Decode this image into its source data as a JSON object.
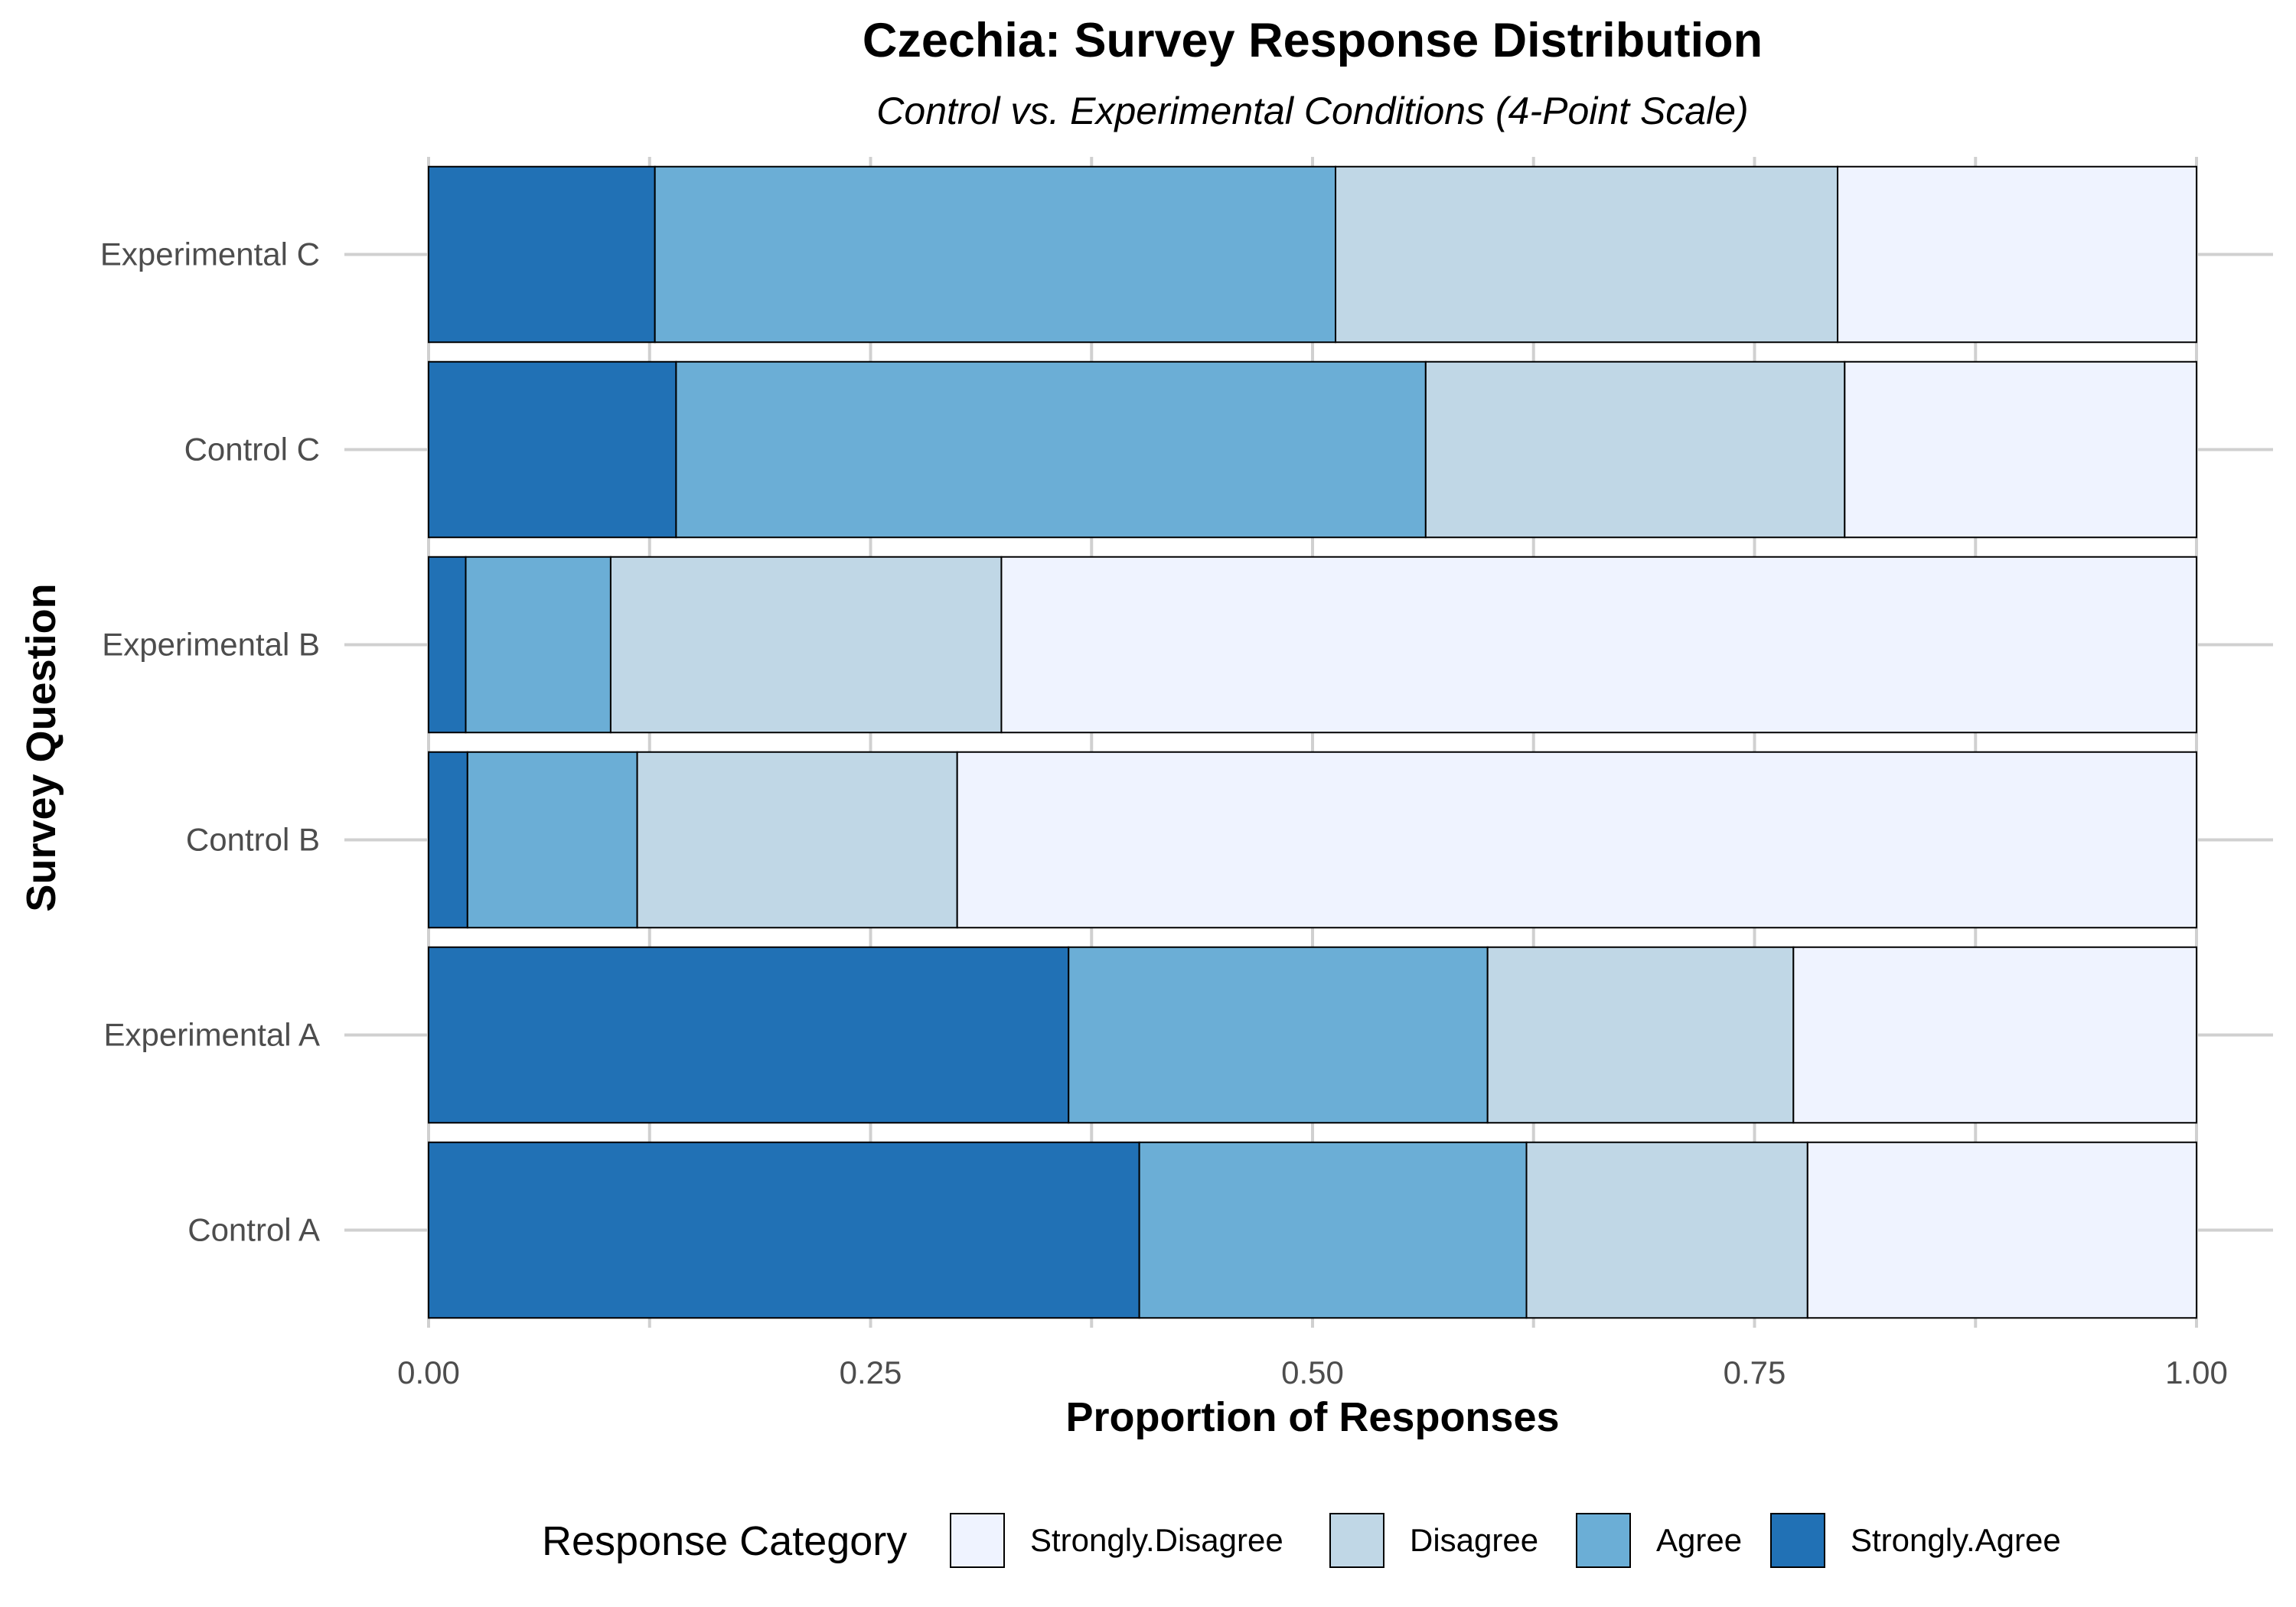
{
  "chart_data": {
    "type": "bar",
    "orientation": "horizontal",
    "stacked": true,
    "title": "Czechia: Survey Response Distribution",
    "subtitle": "Control vs. Experimental Conditions (4-Point Scale)",
    "xlabel": "Proportion of Responses",
    "ylabel": "Survey Question",
    "xlim": [
      0,
      1
    ],
    "x_ticks": [
      "0.00",
      "0.25",
      "0.50",
      "0.75",
      "1.00"
    ],
    "x_tick_values": [
      0,
      0.25,
      0.5,
      0.75,
      1.0
    ],
    "categories": [
      "Control A",
      "Experimental A",
      "Control B",
      "Experimental B",
      "Control C",
      "Experimental C"
    ],
    "series": [
      {
        "name": "Strongly.Agree",
        "color": "#2171b5",
        "values": [
          0.402,
          0.362,
          0.022,
          0.021,
          0.14,
          0.128
        ]
      },
      {
        "name": "Agree",
        "color": "#6baed6",
        "values": [
          0.219,
          0.237,
          0.096,
          0.082,
          0.424,
          0.385
        ]
      },
      {
        "name": "Disagree",
        "color": "#c0d7e6",
        "values": [
          0.159,
          0.173,
          0.181,
          0.221,
          0.237,
          0.284
        ]
      },
      {
        "name": "Strongly.Disagree",
        "color": "#eff3ff",
        "values": [
          0.22,
          0.228,
          0.701,
          0.676,
          0.199,
          0.203
        ]
      }
    ],
    "legend": {
      "title": "Response Category",
      "position": "bottom",
      "order": [
        "Strongly.Disagree",
        "Disagree",
        "Agree",
        "Strongly.Agree"
      ]
    },
    "grid": true
  }
}
